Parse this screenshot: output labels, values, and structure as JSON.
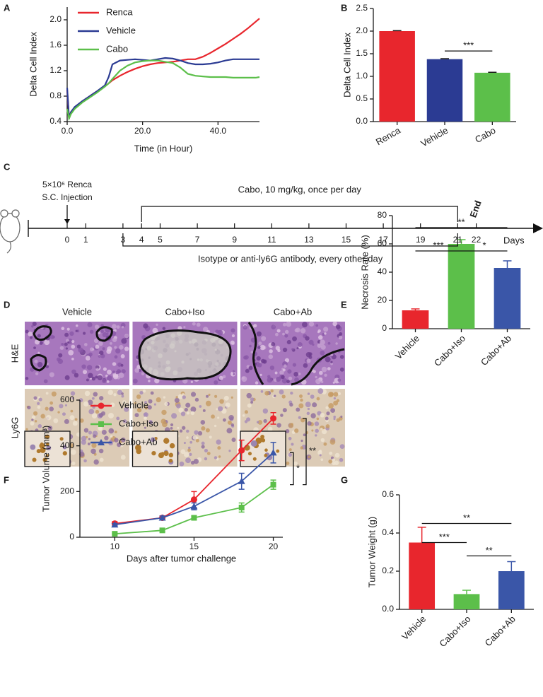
{
  "chart_data": [
    {
      "panel": "A",
      "type": "line",
      "x": [
        0,
        0.5,
        1,
        2,
        4,
        6,
        8,
        10,
        11,
        12,
        14,
        16,
        18,
        20,
        22,
        24,
        26,
        28,
        30,
        32,
        34,
        36,
        38,
        40,
        42,
        44,
        46,
        48,
        50,
        51
      ],
      "xlim": [
        0,
        51
      ],
      "xticks": [
        {
          "value": 0,
          "label": "0.0"
        },
        {
          "value": 20,
          "label": "20.0"
        },
        {
          "value": 40,
          "label": "40.0"
        }
      ],
      "ylim": [
        0.4,
        2.2
      ],
      "yticks": [
        0.4,
        0.8,
        1.2,
        1.6,
        {
          "value": 2,
          "label": "2.0"
        }
      ],
      "xlabel": "Time (in Hour)",
      "ylabel": "Delta Cell Index",
      "legend": "upper left",
      "series": [
        {
          "name": "Renca",
          "color": "#e8262d",
          "values": [
            0.9,
            0.45,
            0.55,
            0.62,
            0.72,
            0.8,
            0.88,
            0.96,
            1.0,
            1.05,
            1.12,
            1.18,
            1.23,
            1.27,
            1.3,
            1.32,
            1.33,
            1.34,
            1.36,
            1.38,
            1.38,
            1.42,
            1.48,
            1.55,
            1.62,
            1.7,
            1.78,
            1.87,
            1.97,
            2.02
          ]
        },
        {
          "name": "Vehicle",
          "color": "#2b3b93",
          "values": [
            0.93,
            0.45,
            0.55,
            0.63,
            0.72,
            0.8,
            0.88,
            0.97,
            1.1,
            1.3,
            1.36,
            1.37,
            1.38,
            1.37,
            1.36,
            1.38,
            1.4,
            1.39,
            1.36,
            1.32,
            1.3,
            1.3,
            1.31,
            1.33,
            1.36,
            1.38,
            1.38,
            1.38,
            1.38,
            1.38
          ]
        },
        {
          "name": "Cabo",
          "color": "#5cbf4a",
          "values": [
            0.6,
            0.45,
            0.52,
            0.6,
            0.7,
            0.78,
            0.86,
            0.95,
            1.0,
            1.07,
            1.2,
            1.28,
            1.33,
            1.35,
            1.36,
            1.36,
            1.34,
            1.32,
            1.25,
            1.15,
            1.12,
            1.11,
            1.1,
            1.1,
            1.1,
            1.09,
            1.09,
            1.09,
            1.09,
            1.1
          ]
        }
      ]
    },
    {
      "panel": "B",
      "type": "bar",
      "categories": [
        "Renca",
        "Vehicle",
        "Cabo"
      ],
      "values": [
        2.0,
        1.38,
        1.08
      ],
      "errors": [
        0.01,
        0.01,
        0.01
      ],
      "colors": [
        "#e8262d",
        "#2b3b93",
        "#5cbf4a"
      ],
      "error_color": "#1a1a1a",
      "ylim": [
        0,
        2.5
      ],
      "yticks": [
        {
          "value": 0,
          "label": "0.0"
        },
        0.5,
        {
          "value": 1,
          "label": "1.0"
        },
        1.5,
        {
          "value": 2,
          "label": "2.0"
        },
        2.5
      ],
      "ylabel": "Delta Cell Index",
      "significance": [
        {
          "label": "***",
          "between": [
            "Vehicle",
            "Cabo"
          ],
          "y": 1.56
        }
      ]
    },
    {
      "panel": "E",
      "type": "bar",
      "categories": [
        "Vehicle",
        "Cabo+Iso",
        "Cabo+Ab"
      ],
      "values": [
        13,
        60,
        43
      ],
      "errors": [
        1,
        3,
        5
      ],
      "colors": [
        "#e8262d",
        "#5cbf4a",
        "#3a56a8"
      ],
      "ylim": [
        0,
        80
      ],
      "yticks": [
        0,
        20,
        40,
        60,
        80
      ],
      "ylabel": "Necrosis Rate (%)",
      "significance": [
        {
          "label": "**",
          "between": [
            "Vehicle",
            "Cabo+Ab"
          ],
          "y": 71.5
        },
        {
          "label": "***",
          "between": [
            "Vehicle",
            "Cabo+Iso"
          ],
          "y": 55
        },
        {
          "label": "*",
          "between": [
            "Cabo+Iso",
            "Cabo+Ab"
          ],
          "y": 55
        }
      ]
    },
    {
      "panel": "F",
      "type": "line",
      "x": [
        10,
        13,
        15,
        18,
        20
      ],
      "xlim": [
        7.8,
        20.6
      ],
      "xticks": [
        10,
        15,
        20
      ],
      "ylim": [
        0,
        600
      ],
      "yticks": [
        0,
        200,
        400,
        600
      ],
      "xlabel": "Days after tumor challenge",
      "ylabel": "Tumor Volume (mm³)",
      "legend": "upper left",
      "series": [
        {
          "name": "Vehicle",
          "color": "#e8262d",
          "marker": "circle",
          "values": [
            60,
            85,
            165,
            380,
            520
          ],
          "errors": [
            8,
            8,
            35,
            45,
            25
          ]
        },
        {
          "name": "Cabo+Iso",
          "color": "#5cbf4a",
          "marker": "square",
          "values": [
            15,
            30,
            85,
            130,
            230
          ],
          "errors": [
            3,
            5,
            8,
            20,
            20
          ]
        },
        {
          "name": "Cabo+Ab",
          "color": "#3a56a8",
          "marker": "triangle",
          "values": [
            55,
            85,
            135,
            245,
            370
          ],
          "errors": [
            5,
            8,
            15,
            35,
            45
          ]
        }
      ],
      "significance": [
        {
          "label": "*",
          "between": [
            "Cabo+Ab",
            "Cabo+Iso"
          ]
        },
        {
          "label": "**",
          "between": [
            "Vehicle",
            "Cabo+Iso"
          ]
        }
      ]
    },
    {
      "panel": "G",
      "type": "bar",
      "categories": [
        "Vehicle",
        "Cabo+Iso",
        "Cabo+Ab"
      ],
      "values": [
        0.35,
        0.08,
        0.2
      ],
      "errors": [
        0.08,
        0.02,
        0.05
      ],
      "colors": [
        "#e8262d",
        "#5cbf4a",
        "#3a56a8"
      ],
      "ylim": [
        0,
        0.6
      ],
      "yticks": [
        {
          "value": 0,
          "label": "0.0"
        },
        0.2,
        0.4,
        0.6
      ],
      "ylabel": "Tumor Weight (g)",
      "significance": [
        {
          "label": "**",
          "between": [
            "Vehicle",
            "Cabo+Ab"
          ],
          "y": 0.45
        },
        {
          "label": "***",
          "between": [
            "Vehicle",
            "Cabo+Iso"
          ],
          "y": 0.35
        },
        {
          "label": "**",
          "between": [
            "Cabo+Iso",
            "Cabo+Ab"
          ],
          "y": 0.28
        }
      ]
    }
  ],
  "timeline": {
    "panel": "C",
    "injection": [
      "5×10⁶ Renca",
      "S.C. Injection"
    ],
    "injection_day": 0,
    "days": [
      0,
      1,
      3,
      4,
      5,
      7,
      9,
      11,
      13,
      15,
      17,
      19,
      21,
      22
    ],
    "axis_label": "Days",
    "treatment": {
      "label": "Cabo, 10 mg/kg, once per day",
      "start": 4,
      "end": 21
    },
    "antibody": {
      "label": "Isotype  or anti-ly6G antibody, every other day",
      "start": 3,
      "end": 21
    },
    "end": {
      "label": "End",
      "day": 22
    }
  },
  "histology": {
    "panel": "D",
    "columns": [
      "Vehicle",
      "Cabo+Iso",
      "Cabo+Ab"
    ],
    "rows": [
      "H&E",
      "Ly6G"
    ]
  }
}
